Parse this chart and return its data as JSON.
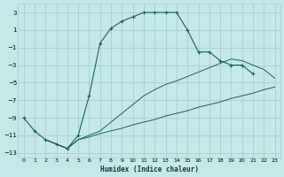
{
  "xlabel": "Humidex (Indice chaleur)",
  "bg_color": "#c5e8e8",
  "line_color": "#1a6060",
  "grid_color": "#a8d0d0",
  "xlim": [
    -0.5,
    23.5
  ],
  "ylim": [
    -13.5,
    4.0
  ],
  "yticks": [
    3,
    1,
    -1,
    -3,
    -5,
    -7,
    -9,
    -11,
    -13
  ],
  "xticks": [
    0,
    1,
    2,
    3,
    4,
    5,
    6,
    7,
    8,
    9,
    10,
    11,
    12,
    13,
    14,
    15,
    16,
    17,
    18,
    19,
    20,
    21,
    22,
    23
  ],
  "series0_x": [
    0,
    1,
    2,
    3,
    4,
    5,
    6,
    7,
    8,
    9,
    10,
    11,
    12,
    13,
    14,
    15,
    16,
    17,
    18,
    19,
    20,
    21
  ],
  "series0_y": [
    -9,
    -10.5,
    -11.5,
    -12,
    -12.5,
    -11,
    -6.5,
    -0.5,
    1.2,
    2.0,
    2.5,
    3.0,
    3.0,
    3.0,
    3.0,
    1.0,
    -1.5,
    -1.5,
    -2.5,
    -3.0,
    -3.0,
    -4.0
  ],
  "series1_x": [
    2,
    3,
    4,
    5,
    6,
    7,
    8,
    9,
    10,
    11,
    12,
    13,
    14,
    15,
    16,
    17,
    18,
    19,
    20,
    21,
    22,
    23
  ],
  "series1_y": [
    -11.5,
    -12.0,
    -12.5,
    -11.5,
    -11.2,
    -10.8,
    -10.5,
    -10.2,
    -9.8,
    -9.5,
    -9.2,
    -8.8,
    -8.5,
    -8.2,
    -7.8,
    -7.5,
    -7.2,
    -6.8,
    -6.5,
    -6.2,
    -5.8,
    -5.5
  ],
  "series2_x": [
    2,
    3,
    4,
    5,
    6,
    7,
    8,
    9,
    10,
    11,
    12,
    13,
    14,
    15,
    16,
    17,
    18,
    19,
    20,
    21,
    22,
    23
  ],
  "series2_y": [
    -11.5,
    -12.0,
    -12.5,
    -11.5,
    -11.0,
    -10.5,
    -9.5,
    -8.5,
    -7.5,
    -6.5,
    -5.8,
    -5.2,
    -4.8,
    -4.3,
    -3.8,
    -3.3,
    -2.8,
    -2.3,
    -2.5,
    -3.0,
    -3.5,
    -4.5
  ]
}
